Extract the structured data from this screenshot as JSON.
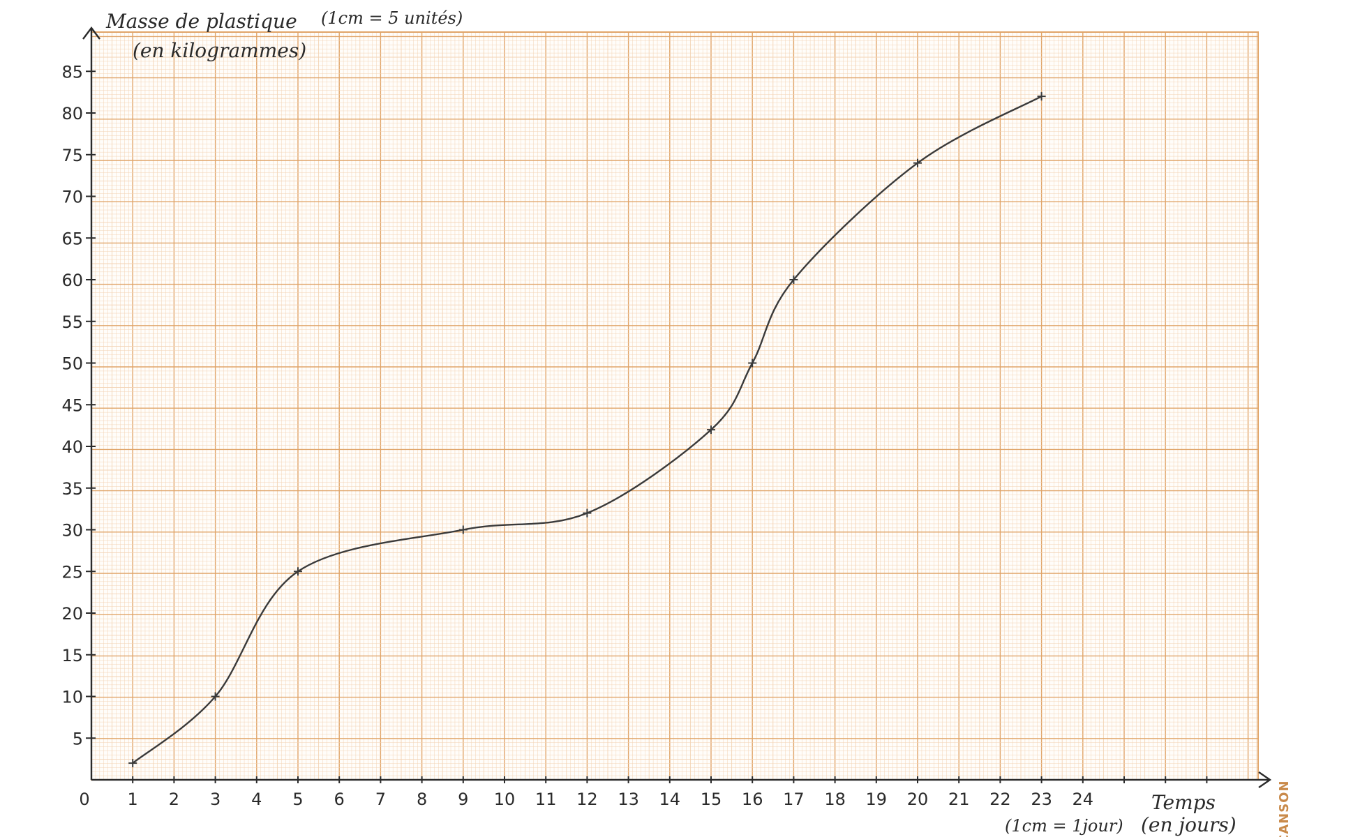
{
  "chart_data": {
    "type": "line",
    "title": "",
    "ylabel_line1": "Masse de plastique",
    "ylabel_line2": "(en kilogrammes)",
    "ylabel_scale": "(1cm = 5 unités)",
    "xlabel": "Temps",
    "xlabel_unit": "(en jours)",
    "xlabel_scale": "(1cm = 1jour)",
    "xlim": [
      0,
      28
    ],
    "ylim": [
      0,
      90
    ],
    "x_ticks": [
      0,
      1,
      2,
      3,
      4,
      5,
      6,
      7,
      8,
      9,
      10,
      11,
      12,
      13,
      14,
      15,
      16,
      17,
      18,
      19,
      20,
      21,
      22,
      23,
      24
    ],
    "x_tick_labels": [
      "0",
      "1",
      "2",
      "3",
      "4",
      "5",
      "6",
      "7",
      "8",
      "9",
      "10",
      "11",
      "12",
      "13",
      "14",
      "15",
      "16",
      "17",
      "18",
      "19",
      "20",
      "21",
      "22",
      "23",
      "24"
    ],
    "y_ticks": [
      5,
      10,
      15,
      20,
      25,
      30,
      35,
      40,
      45,
      50,
      55,
      60,
      65,
      70,
      75,
      80,
      85
    ],
    "y_tick_labels": [
      "5",
      "10",
      "15",
      "20",
      "25",
      "30",
      "35",
      "40",
      "45",
      "50",
      "55",
      "60",
      "65",
      "70",
      "75",
      "80",
      "85"
    ],
    "grid": true,
    "series": [
      {
        "x": [
          1,
          3,
          5,
          9,
          12,
          15,
          16,
          17,
          20,
          23
        ],
        "y": [
          2,
          10,
          25,
          30,
          32,
          42,
          50,
          60,
          74,
          82
        ]
      }
    ],
    "colors": {
      "grid_major": "#e0a468",
      "grid_minor": "#f3d3b4",
      "line": "#3a3a3a",
      "paper": "#fffdfa"
    }
  },
  "brand": "CANSON"
}
